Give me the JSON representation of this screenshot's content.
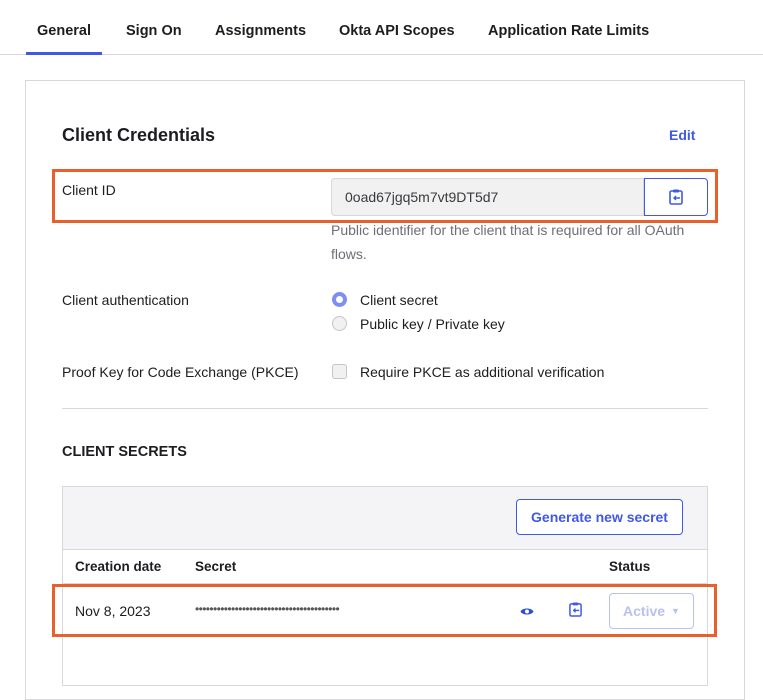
{
  "tabs": [
    {
      "label": "General",
      "active": true
    },
    {
      "label": "Sign On"
    },
    {
      "label": "Assignments"
    },
    {
      "label": "Okta API Scopes"
    },
    {
      "label": "Application Rate Limits"
    }
  ],
  "credentials": {
    "title": "Client Credentials",
    "edit_label": "Edit",
    "client_id_label": "Client ID",
    "client_id_value": "0oad67jgq5m7vt9DT5d7",
    "client_id_help": "Public identifier for the client that is required for all OAuth flows.",
    "auth_label": "Client authentication",
    "auth_options": [
      {
        "label": "Client secret",
        "selected": true
      },
      {
        "label": "Public key / Private key",
        "selected": false
      }
    ],
    "pkce_label": "Proof Key for Code Exchange (PKCE)",
    "pkce_option": "Require PKCE as additional verification",
    "pkce_checked": false
  },
  "secrets": {
    "title": "CLIENT SECRETS",
    "generate_label": "Generate new secret",
    "columns": [
      "Creation date",
      "Secret",
      "Status"
    ],
    "rows": [
      {
        "date": "Nov 8, 2023",
        "secret": "••••••••••••••••••••••••••••••••••••••••",
        "status": "Active"
      }
    ]
  },
  "colors": {
    "accent": "#3f59e4",
    "highlight": "#e8602c"
  }
}
